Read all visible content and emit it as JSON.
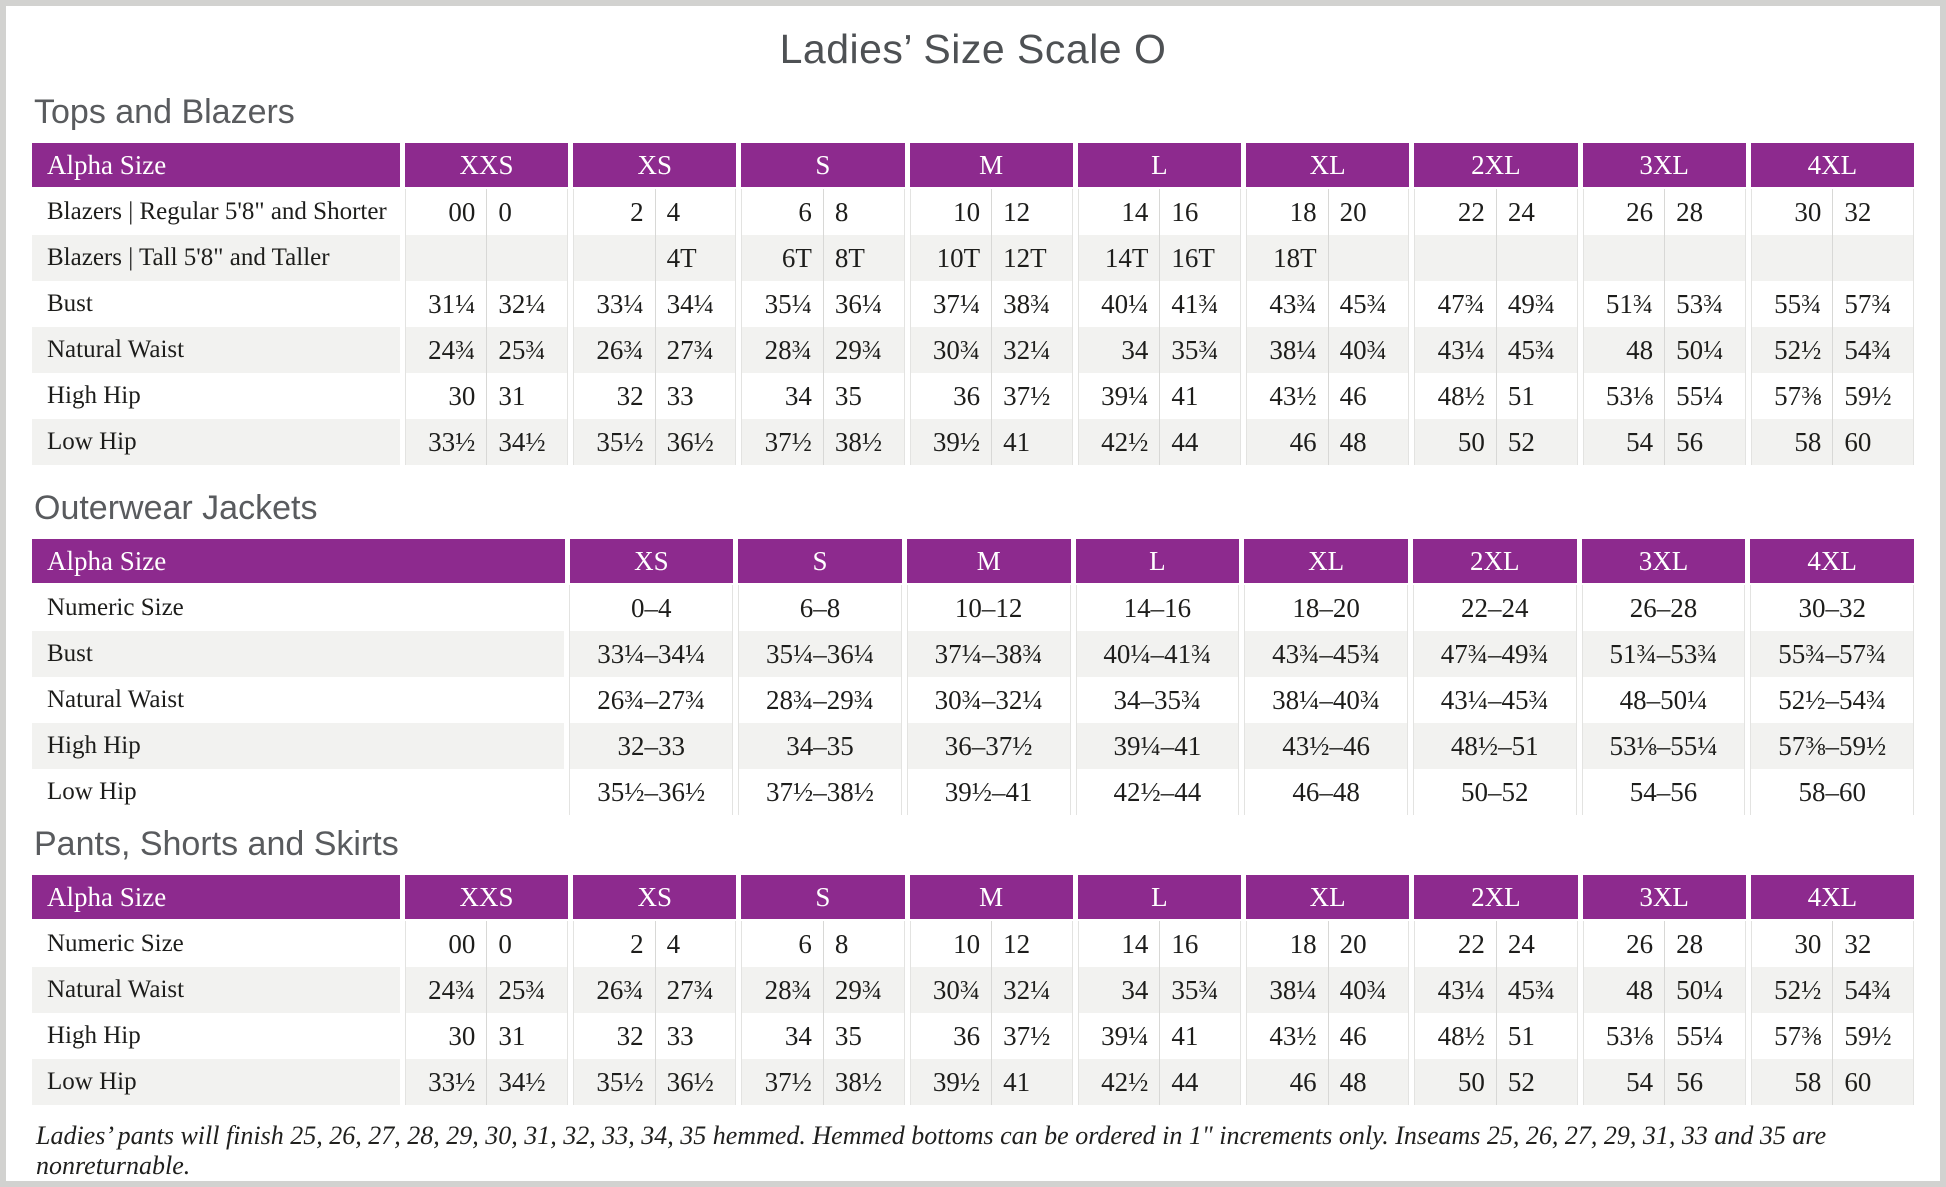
{
  "page": {
    "title": "Ladies’ Size Scale O"
  },
  "colors": {
    "header_purple": "#8d2a8e",
    "row_stripe": "#f2f2f0",
    "heading_gray": "#595b5e",
    "divider": "#d8d8d6",
    "page_frame": "#d2d2d0"
  },
  "tables": [
    {
      "id": "tops-and-blazers",
      "heading": "Tops and Blazers",
      "layout": "paired",
      "header_label": "Alpha Size",
      "columns": [
        "XXS",
        "XS",
        "S",
        "M",
        "L",
        "XL",
        "2XL",
        "3XL",
        "4XL"
      ],
      "rows": [
        {
          "label": "Blazers | Regular 5'8\" and Shorter",
          "cells": [
            [
              "00",
              "0"
            ],
            [
              "2",
              "4"
            ],
            [
              "6",
              "8"
            ],
            [
              "10",
              "12"
            ],
            [
              "14",
              "16"
            ],
            [
              "18",
              "20"
            ],
            [
              "22",
              "24"
            ],
            [
              "26",
              "28"
            ],
            [
              "30",
              "32"
            ]
          ]
        },
        {
          "label": "Blazers | Tall 5'8\" and Taller",
          "cells": [
            [
              "",
              ""
            ],
            [
              "",
              "4T"
            ],
            [
              "6T",
              "8T"
            ],
            [
              "10T",
              "12T"
            ],
            [
              "14T",
              "16T"
            ],
            [
              "18T",
              ""
            ],
            [
              "",
              ""
            ],
            [
              "",
              ""
            ],
            [
              "",
              ""
            ]
          ]
        },
        {
          "label": "Bust",
          "cells": [
            [
              "31¼",
              "32¼"
            ],
            [
              "33¼",
              "34¼"
            ],
            [
              "35¼",
              "36¼"
            ],
            [
              "37¼",
              "38¾"
            ],
            [
              "40¼",
              "41¾"
            ],
            [
              "43¾",
              "45¾"
            ],
            [
              "47¾",
              "49¾"
            ],
            [
              "51¾",
              "53¾"
            ],
            [
              "55¾",
              "57¾"
            ]
          ]
        },
        {
          "label": "Natural Waist",
          "cells": [
            [
              "24¾",
              "25¾"
            ],
            [
              "26¾",
              "27¾"
            ],
            [
              "28¾",
              "29¾"
            ],
            [
              "30¾",
              "32¼"
            ],
            [
              "34",
              "35¾"
            ],
            [
              "38¼",
              "40¾"
            ],
            [
              "43¼",
              "45¾"
            ],
            [
              "48",
              "50¼"
            ],
            [
              "52½",
              "54¾"
            ]
          ]
        },
        {
          "label": "High Hip",
          "cells": [
            [
              "30",
              "31"
            ],
            [
              "32",
              "33"
            ],
            [
              "34",
              "35"
            ],
            [
              "36",
              "37½"
            ],
            [
              "39¼",
              "41"
            ],
            [
              "43½",
              "46"
            ],
            [
              "48½",
              "51"
            ],
            [
              "53⅛",
              "55¼"
            ],
            [
              "57⅜",
              "59½"
            ]
          ]
        },
        {
          "label": "Low Hip",
          "cells": [
            [
              "33½",
              "34½"
            ],
            [
              "35½",
              "36½"
            ],
            [
              "37½",
              "38½"
            ],
            [
              "39½",
              "41"
            ],
            [
              "42½",
              "44"
            ],
            [
              "46",
              "48"
            ],
            [
              "50",
              "52"
            ],
            [
              "54",
              "56"
            ],
            [
              "58",
              "60"
            ]
          ]
        }
      ]
    },
    {
      "id": "outerwear-jackets",
      "heading": "Outerwear Jackets",
      "layout": "single",
      "header_label": "Alpha Size",
      "columns": [
        "XS",
        "S",
        "M",
        "L",
        "XL",
        "2XL",
        "3XL",
        "4XL"
      ],
      "rows": [
        {
          "label": "Numeric Size",
          "cells": [
            "0–4",
            "6–8",
            "10–12",
            "14–16",
            "18–20",
            "22–24",
            "26–28",
            "30–32"
          ]
        },
        {
          "label": "Bust",
          "cells": [
            "33¼–34¼",
            "35¼–36¼",
            "37¼–38¾",
            "40¼–41¾",
            "43¾–45¾",
            "47¾–49¾",
            "51¾–53¾",
            "55¾–57¾"
          ]
        },
        {
          "label": "Natural Waist",
          "cells": [
            "26¾–27¾",
            "28¾–29¾",
            "30¾–32¼",
            "34–35¾",
            "38¼–40¾",
            "43¼–45¾",
            "48–50¼",
            "52½–54¾"
          ]
        },
        {
          "label": "High Hip",
          "cells": [
            "32–33",
            "34–35",
            "36–37½",
            "39¼–41",
            "43½–46",
            "48½–51",
            "53⅛–55¼",
            "57⅜–59½"
          ]
        },
        {
          "label": "Low Hip",
          "cells": [
            "35½–36½",
            "37½–38½",
            "39½–41",
            "42½–44",
            "46–48",
            "50–52",
            "54–56",
            "58–60"
          ]
        }
      ]
    },
    {
      "id": "pants-shorts-skirts",
      "heading": "Pants, Shorts and Skirts",
      "layout": "paired",
      "header_label": "Alpha Size",
      "columns": [
        "XXS",
        "XS",
        "S",
        "M",
        "L",
        "XL",
        "2XL",
        "3XL",
        "4XL"
      ],
      "rows": [
        {
          "label": "Numeric Size",
          "cells": [
            [
              "00",
              "0"
            ],
            [
              "2",
              "4"
            ],
            [
              "6",
              "8"
            ],
            [
              "10",
              "12"
            ],
            [
              "14",
              "16"
            ],
            [
              "18",
              "20"
            ],
            [
              "22",
              "24"
            ],
            [
              "26",
              "28"
            ],
            [
              "30",
              "32"
            ]
          ]
        },
        {
          "label": "Natural Waist",
          "cells": [
            [
              "24¾",
              "25¾"
            ],
            [
              "26¾",
              "27¾"
            ],
            [
              "28¾",
              "29¾"
            ],
            [
              "30¾",
              "32¼"
            ],
            [
              "34",
              "35¾"
            ],
            [
              "38¼",
              "40¾"
            ],
            [
              "43¼",
              "45¾"
            ],
            [
              "48",
              "50¼"
            ],
            [
              "52½",
              "54¾"
            ]
          ]
        },
        {
          "label": "High Hip",
          "cells": [
            [
              "30",
              "31"
            ],
            [
              "32",
              "33"
            ],
            [
              "34",
              "35"
            ],
            [
              "36",
              "37½"
            ],
            [
              "39¼",
              "41"
            ],
            [
              "43½",
              "46"
            ],
            [
              "48½",
              "51"
            ],
            [
              "53⅛",
              "55¼"
            ],
            [
              "57⅜",
              "59½"
            ]
          ]
        },
        {
          "label": "Low Hip",
          "cells": [
            [
              "33½",
              "34½"
            ],
            [
              "35½",
              "36½"
            ],
            [
              "37½",
              "38½"
            ],
            [
              "39½",
              "41"
            ],
            [
              "42½",
              "44"
            ],
            [
              "46",
              "48"
            ],
            [
              "50",
              "52"
            ],
            [
              "54",
              "56"
            ],
            [
              "58",
              "60"
            ]
          ]
        }
      ]
    }
  ],
  "footnote": "Ladies’ pants will finish 25, 26, 27, 28, 29, 30, 31, 32, 33, 34, 35 hemmed. Hemmed bottoms can be ordered in 1\" increments only. Inseams 25, 26, 27, 29, 31, 33 and 35 are nonreturnable."
}
